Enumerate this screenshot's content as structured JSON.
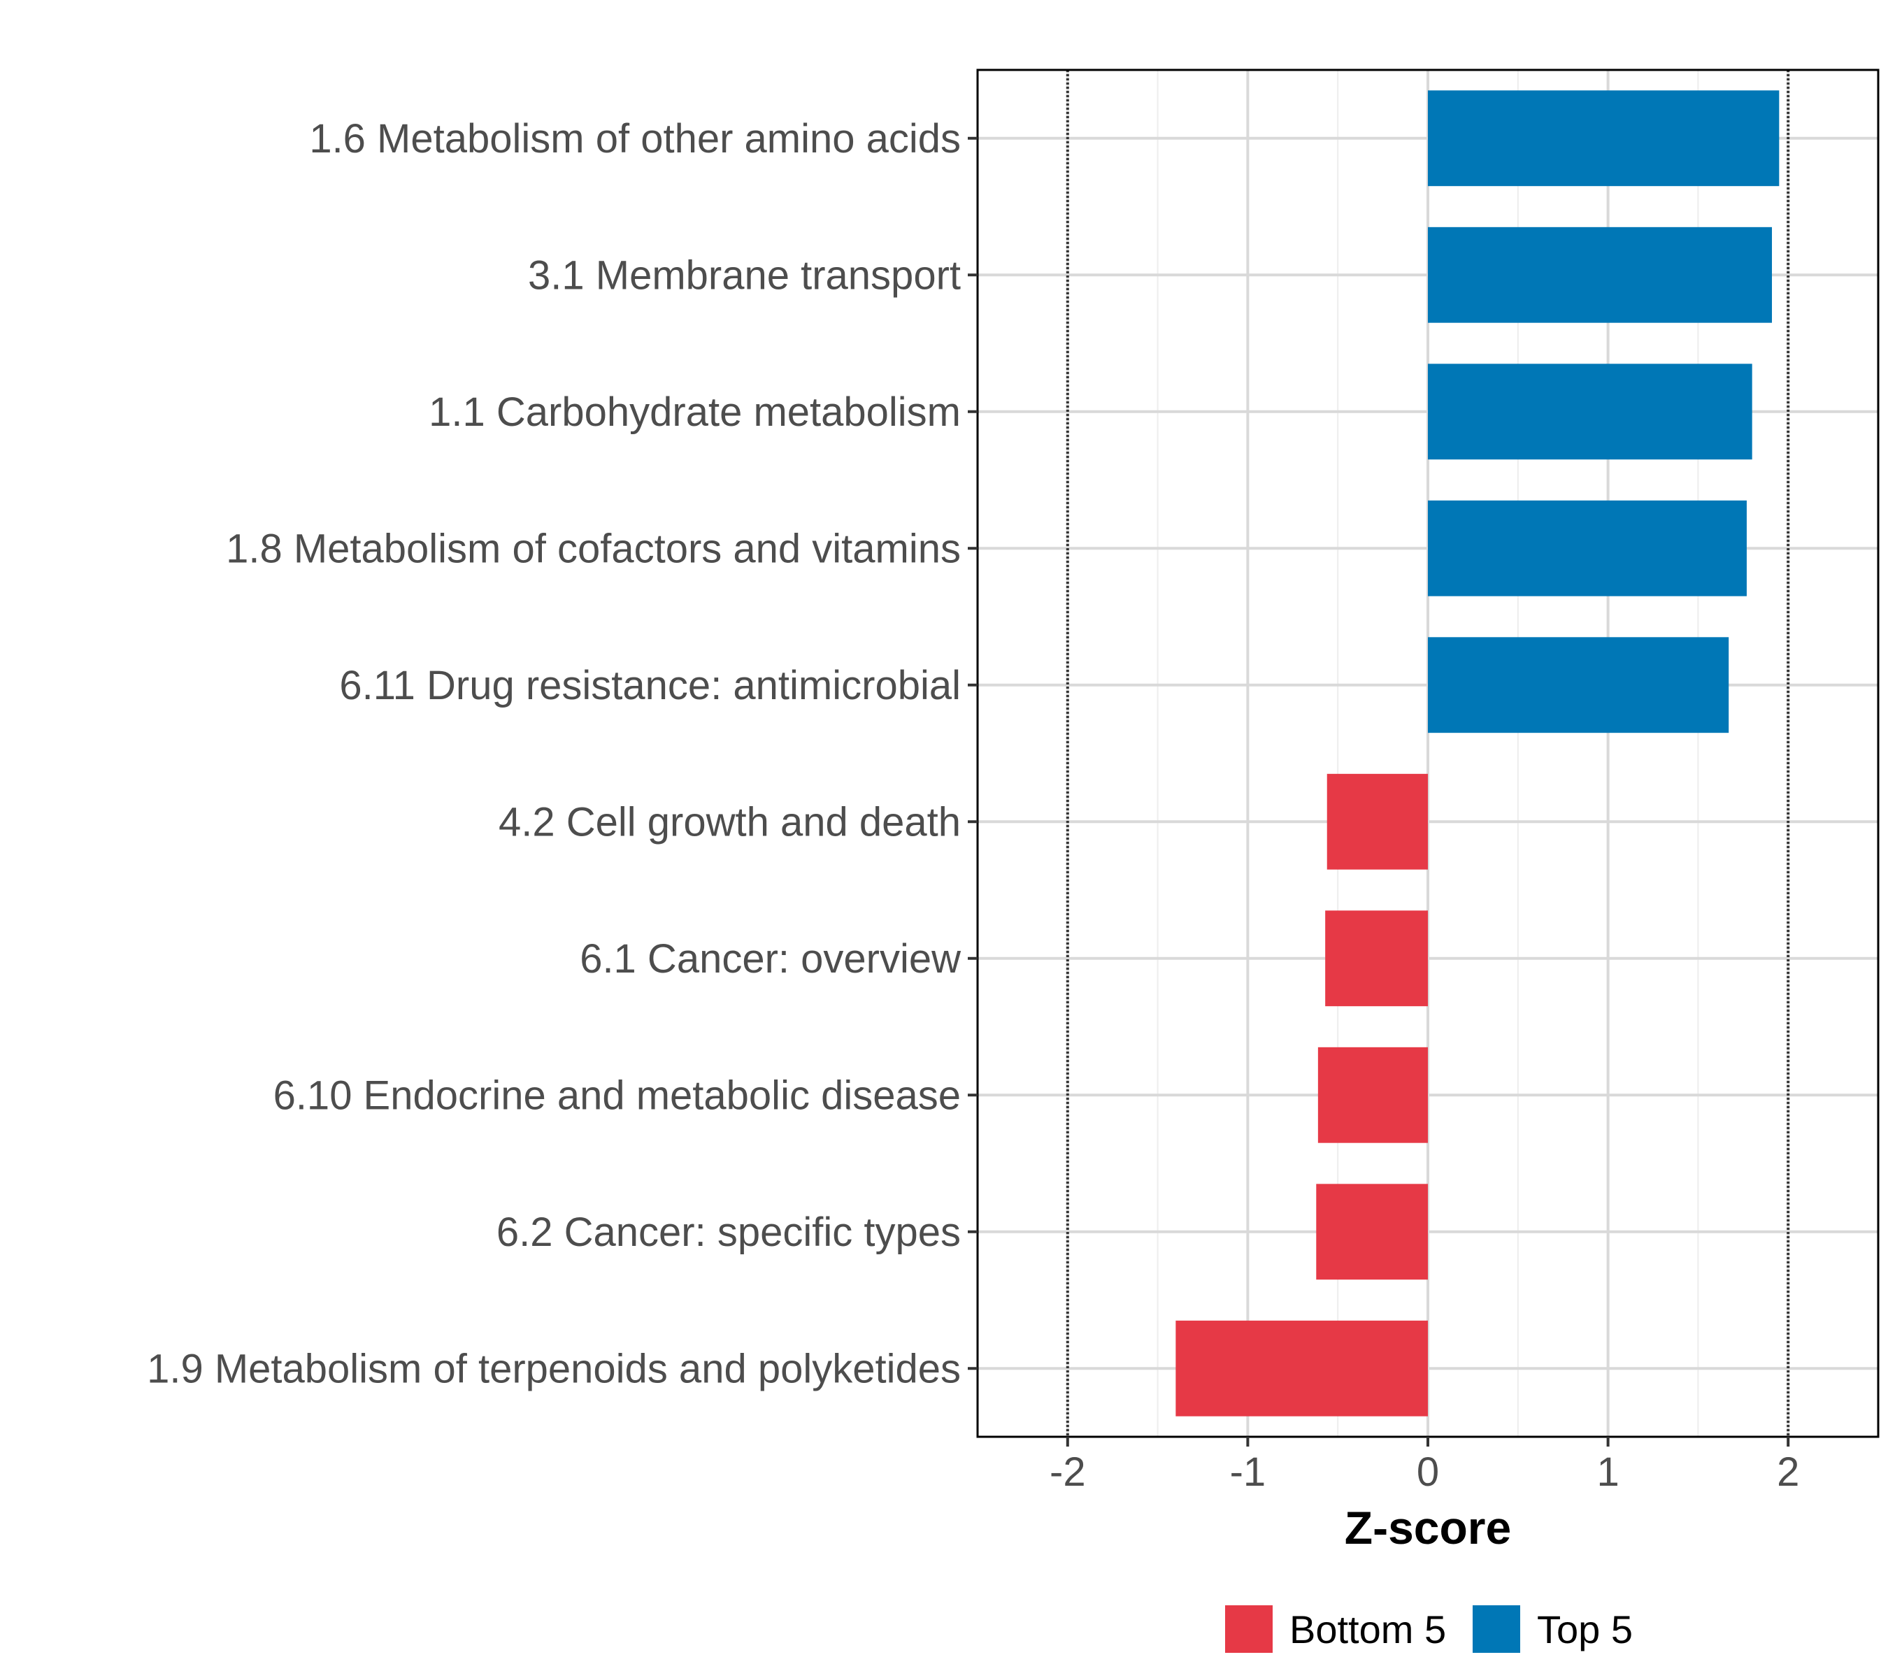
{
  "chart_data": {
    "type": "bar",
    "orientation": "horizontal",
    "xlabel": "Z-score",
    "xlim": [
      -2.5,
      2.5
    ],
    "xticks": [
      -2,
      -1,
      0,
      1,
      2
    ],
    "xtick_labels": [
      "-2",
      "-1",
      "0",
      "1",
      "2"
    ],
    "reference_lines": [
      -2,
      2
    ],
    "grid": true,
    "categories": [
      "1.6 Metabolism of other amino acids",
      "3.1 Membrane transport",
      "1.1 Carbohydrate metabolism",
      "1.8 Metabolism of cofactors and vitamins",
      "6.11 Drug resistance: antimicrobial",
      "4.2 Cell growth and death",
      "6.1 Cancer: overview",
      "6.10 Endocrine and metabolic disease",
      "6.2 Cancer: specific types",
      "1.9 Metabolism of terpenoids and polyketides"
    ],
    "values": [
      1.95,
      1.91,
      1.8,
      1.77,
      1.67,
      -0.56,
      -0.57,
      -0.61,
      -0.62,
      -1.4
    ],
    "groups": [
      "Top 5",
      "Top 5",
      "Top 5",
      "Top 5",
      "Top 5",
      "Bottom 5",
      "Bottom 5",
      "Bottom 5",
      "Bottom 5",
      "Bottom 5"
    ],
    "legend": [
      {
        "label": "Bottom 5",
        "color": "#e63946"
      },
      {
        "label": "Top 5",
        "color": "#0077b6"
      }
    ],
    "legend_position": "bottom",
    "colors": {
      "Top 5": "#0077b6",
      "Bottom 5": "#e63946"
    }
  }
}
